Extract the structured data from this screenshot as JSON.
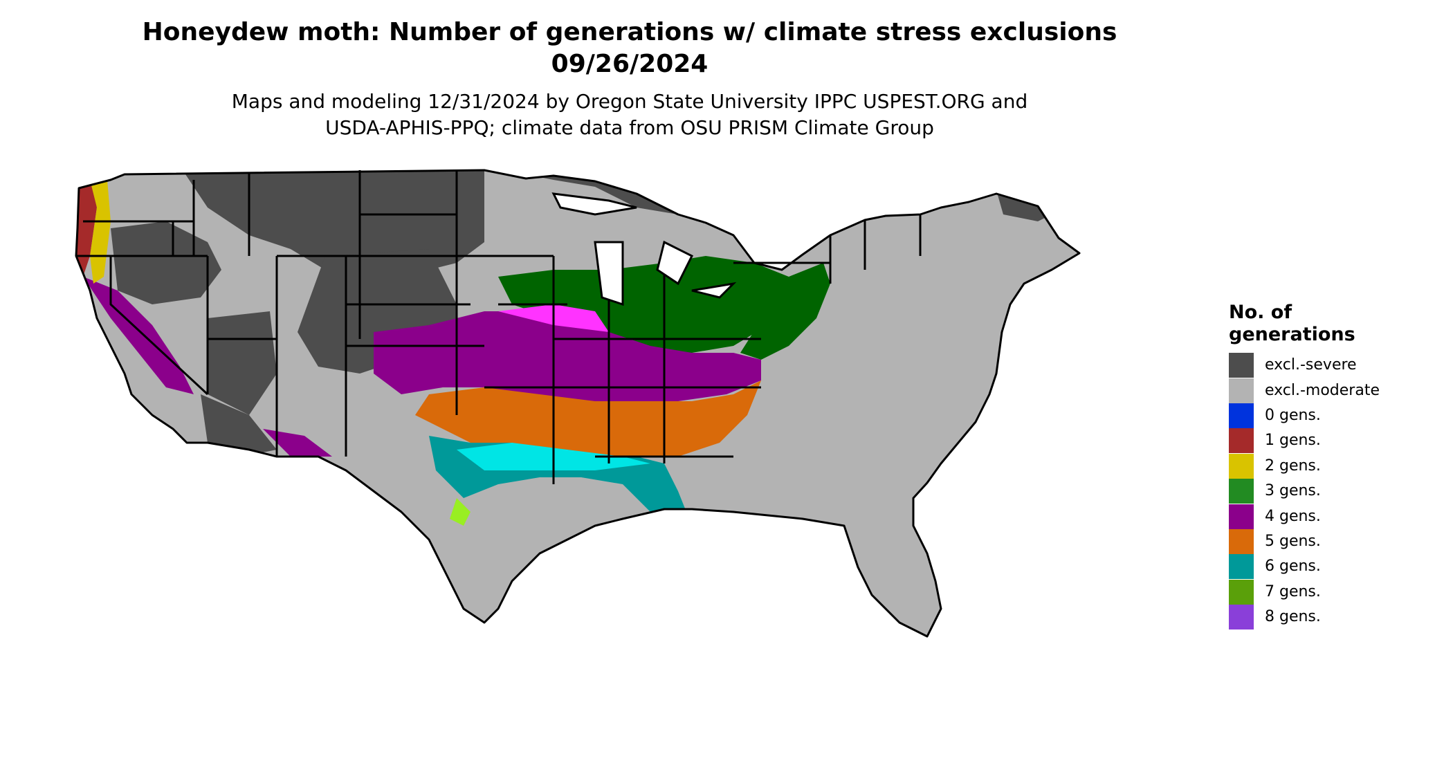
{
  "header": {
    "title_line1": "Honeydew moth: Number of generations w/ climate stress exclusions",
    "title_line2": "09/26/2024",
    "subtitle_line1": "Maps and modeling 12/31/2024 by Oregon State University IPPC USPEST.ORG and",
    "subtitle_line2": "USDA-APHIS-PPQ; climate data from OSU PRISM Climate Group"
  },
  "legend": {
    "title_line1": "No. of",
    "title_line2": "generations",
    "items": [
      {
        "label": "excl.-severe",
        "color": "#4d4d4d"
      },
      {
        "label": "excl.-moderate",
        "color": "#b3b3b3"
      },
      {
        "label": "0 gens.",
        "color": "#0033dd"
      },
      {
        "label": "1 gens.",
        "color": "#a52a2a"
      },
      {
        "label": "2 gens.",
        "color": "#d9c300"
      },
      {
        "label": "3 gens.",
        "color": "#228b22"
      },
      {
        "label": "4 gens.",
        "color": "#8b008b"
      },
      {
        "label": "5 gens.",
        "color": "#d96a0a"
      },
      {
        "label": "6 gens.",
        "color": "#009999"
      },
      {
        "label": "7 gens.",
        "color": "#5aa00a"
      },
      {
        "label": "8 gens.",
        "color": "#8a3fd9"
      }
    ]
  },
  "map": {
    "region": "conterminous United States",
    "colors": {
      "state_border": "#000000",
      "gen4_light": "#ff33ff",
      "gen6_light": "#00e5e5",
      "gen7_light": "#99ee22",
      "gen3_dark": "#006400"
    }
  }
}
